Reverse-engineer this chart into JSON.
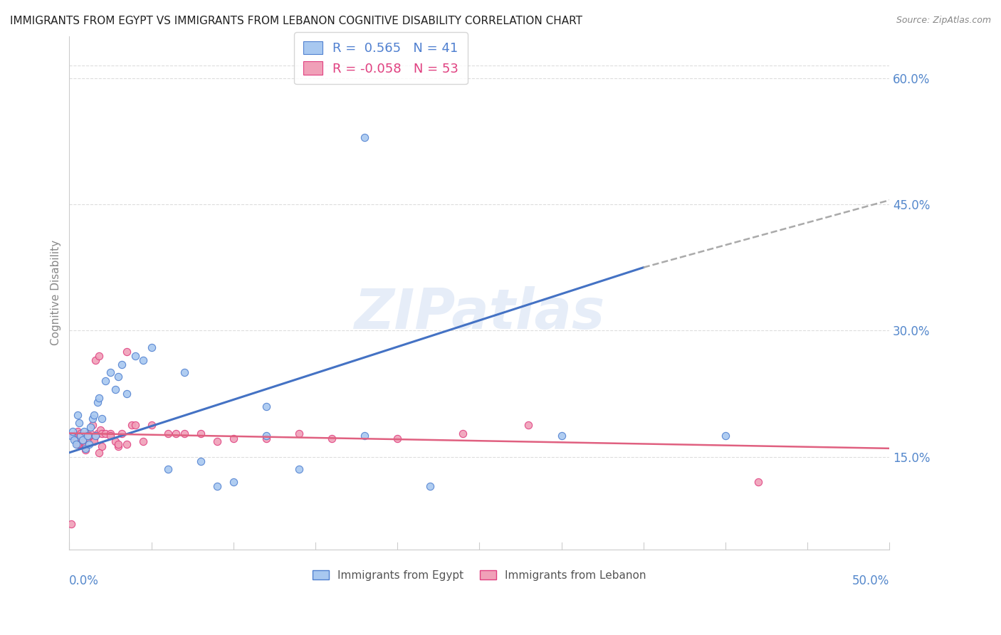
{
  "title": "IMMIGRANTS FROM EGYPT VS IMMIGRANTS FROM LEBANON COGNITIVE DISABILITY CORRELATION CHART",
  "source": "Source: ZipAtlas.com",
  "ylabel": "Cognitive Disability",
  "right_yticks": [
    0.15,
    0.3,
    0.45,
    0.6
  ],
  "right_yticklabels": [
    "15.0%",
    "30.0%",
    "45.0%",
    "60.0%"
  ],
  "xlim": [
    0.0,
    0.5
  ],
  "ylim": [
    0.04,
    0.65
  ],
  "egypt_color": "#a8c8f0",
  "lebanon_color": "#f0a0b8",
  "egypt_edge": "#5080d0",
  "lebanon_edge": "#e04080",
  "legend_R_egypt": "R =  0.565",
  "legend_N_egypt": "N = 41",
  "legend_R_lebanon": "R = -0.058",
  "legend_N_lebanon": "N = 53",
  "egypt_scatter_x": [
    0.001,
    0.002,
    0.003,
    0.004,
    0.005,
    0.006,
    0.007,
    0.008,
    0.009,
    0.01,
    0.011,
    0.012,
    0.013,
    0.014,
    0.015,
    0.016,
    0.017,
    0.018,
    0.02,
    0.022,
    0.025,
    0.028,
    0.03,
    0.032,
    0.035,
    0.04,
    0.045,
    0.05,
    0.06,
    0.07,
    0.08,
    0.09,
    0.1,
    0.12,
    0.14,
    0.18,
    0.22,
    0.18,
    0.3,
    0.4,
    0.12
  ],
  "egypt_scatter_y": [
    0.175,
    0.18,
    0.17,
    0.165,
    0.2,
    0.19,
    0.175,
    0.17,
    0.18,
    0.16,
    0.175,
    0.165,
    0.185,
    0.195,
    0.2,
    0.175,
    0.215,
    0.22,
    0.195,
    0.24,
    0.25,
    0.23,
    0.245,
    0.26,
    0.225,
    0.27,
    0.265,
    0.28,
    0.135,
    0.25,
    0.145,
    0.115,
    0.12,
    0.175,
    0.135,
    0.53,
    0.115,
    0.175,
    0.175,
    0.175,
    0.21
  ],
  "lebanon_scatter_x": [
    0.001,
    0.002,
    0.003,
    0.004,
    0.005,
    0.006,
    0.007,
    0.008,
    0.009,
    0.01,
    0.011,
    0.012,
    0.013,
    0.014,
    0.015,
    0.016,
    0.017,
    0.018,
    0.019,
    0.02,
    0.022,
    0.025,
    0.028,
    0.03,
    0.032,
    0.035,
    0.038,
    0.04,
    0.045,
    0.05,
    0.06,
    0.065,
    0.07,
    0.08,
    0.09,
    0.1,
    0.12,
    0.14,
    0.16,
    0.2,
    0.24,
    0.28,
    0.01,
    0.02,
    0.03,
    0.005,
    0.008,
    0.012,
    0.015,
    0.018,
    0.42,
    0.035,
    0.025
  ],
  "lebanon_scatter_y": [
    0.07,
    0.175,
    0.175,
    0.17,
    0.18,
    0.165,
    0.178,
    0.168,
    0.172,
    0.158,
    0.178,
    0.172,
    0.178,
    0.188,
    0.172,
    0.265,
    0.178,
    0.27,
    0.182,
    0.178,
    0.178,
    0.178,
    0.168,
    0.162,
    0.178,
    0.275,
    0.188,
    0.188,
    0.168,
    0.188,
    0.178,
    0.178,
    0.178,
    0.178,
    0.168,
    0.172,
    0.172,
    0.178,
    0.172,
    0.172,
    0.178,
    0.188,
    0.162,
    0.162,
    0.165,
    0.165,
    0.17,
    0.175,
    0.168,
    0.155,
    0.12,
    0.165,
    0.175
  ],
  "egypt_trend_start_x": 0.0,
  "egypt_trend_start_y": 0.155,
  "egypt_trend_solid_end_x": 0.35,
  "egypt_trend_solid_end_y": 0.375,
  "egypt_trend_dash_end_x": 0.5,
  "egypt_trend_dash_end_y": 0.455,
  "lebanon_trend_start_x": 0.0,
  "lebanon_trend_start_y": 0.178,
  "lebanon_trend_end_x": 0.5,
  "lebanon_trend_end_y": 0.16,
  "watermark": "ZIPatlas",
  "background_color": "#ffffff",
  "grid_color": "#dddddd",
  "title_color": "#222222",
  "axis_label_color": "#5588cc",
  "scatter_size": 55
}
